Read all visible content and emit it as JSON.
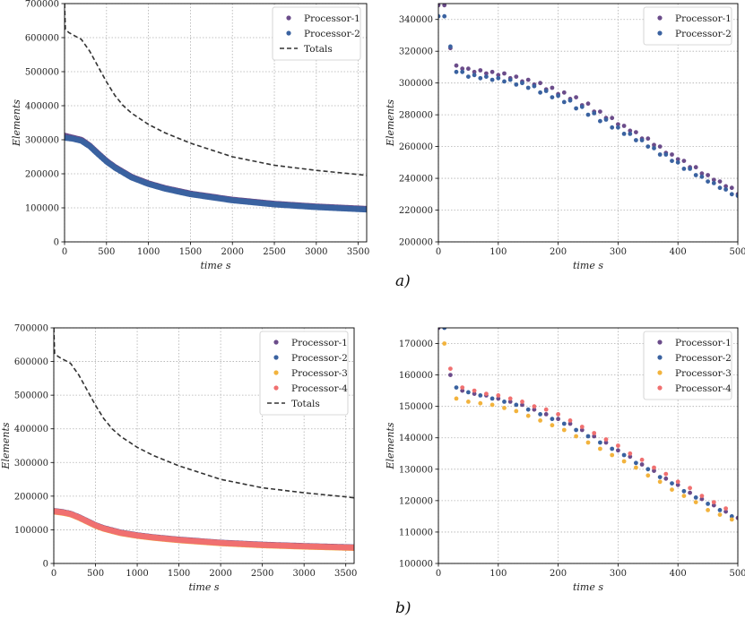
{
  "panel_labels": [
    "a)",
    "b)"
  ],
  "chart_data": [
    {
      "type": "scatter",
      "xlabel": "time s",
      "ylabel": "Elements",
      "xlim": [
        0,
        3600
      ],
      "ylim": [
        0,
        700000
      ],
      "xticks": [
        0,
        500,
        1000,
        1500,
        2000,
        2500,
        3000,
        3500
      ],
      "yticks": [
        0,
        100000,
        200000,
        300000,
        400000,
        500000,
        600000,
        700000
      ],
      "grid": true,
      "legend_position": "top-right",
      "series": [
        {
          "name": "Processor-1",
          "color": "#6b4c8a",
          "kind": "dense",
          "x": [
            0,
            100,
            200,
            300,
            400,
            500,
            600,
            800,
            1000,
            1200,
            1500,
            2000,
            2500,
            3000,
            3600
          ],
          "values": [
            312000,
            306000,
            300000,
            283000,
            260000,
            238000,
            220000,
            191000,
            172000,
            158000,
            142000,
            124000,
            112000,
            104000,
            97000
          ]
        },
        {
          "name": "Processor-2",
          "color": "#3a62a0",
          "kind": "dense",
          "x": [
            0,
            100,
            200,
            300,
            400,
            500,
            600,
            800,
            1000,
            1200,
            1500,
            2000,
            2500,
            3000,
            3600
          ],
          "values": [
            306000,
            303000,
            297000,
            281000,
            258000,
            236000,
            218000,
            189000,
            170000,
            156000,
            140000,
            122000,
            110000,
            102000,
            95000
          ]
        },
        {
          "name": "Totals",
          "color": "#333333",
          "kind": "dashed",
          "x": [
            0,
            10,
            50,
            100,
            200,
            300,
            400,
            500,
            600,
            700,
            800,
            1000,
            1200,
            1500,
            2000,
            2500,
            3000,
            3500,
            3600
          ],
          "values": [
            700000,
            625000,
            615000,
            608000,
            595000,
            560000,
            515000,
            470000,
            430000,
            400000,
            378000,
            345000,
            320000,
            290000,
            250000,
            225000,
            210000,
            198000,
            195000
          ]
        }
      ]
    },
    {
      "type": "scatter",
      "xlabel": "time s",
      "ylabel": "Elements",
      "xlim": [
        0,
        500
      ],
      "ylim": [
        200000,
        350000
      ],
      "xticks": [
        0,
        100,
        200,
        300,
        400,
        500
      ],
      "yticks": [
        200000,
        220000,
        240000,
        260000,
        280000,
        300000,
        320000,
        340000
      ],
      "grid": true,
      "legend_position": "top-right",
      "series": [
        {
          "name": "Processor-1",
          "color": "#6b4c8a",
          "kind": "points",
          "x": [
            0,
            10,
            20,
            30,
            40,
            50,
            60,
            70,
            80,
            90,
            100,
            110,
            120,
            130,
            140,
            150,
            160,
            170,
            180,
            190,
            200,
            210,
            220,
            230,
            240,
            250,
            260,
            270,
            280,
            290,
            300,
            310,
            320,
            330,
            340,
            350,
            360,
            370,
            380,
            390,
            400,
            410,
            420,
            430,
            440,
            450,
            460,
            470,
            480,
            490,
            500
          ],
          "values": [
            349000,
            349000,
            322000,
            311000,
            309000,
            309000,
            307000,
            308000,
            306000,
            307000,
            305000,
            306000,
            303000,
            304000,
            301000,
            302000,
            299000,
            300000,
            296000,
            297000,
            293000,
            294000,
            290000,
            291000,
            286000,
            287000,
            282000,
            282000,
            278000,
            278000,
            274000,
            273000,
            270000,
            269000,
            265000,
            265000,
            261000,
            260000,
            256000,
            255000,
            252000,
            251000,
            247000,
            247000,
            243000,
            242000,
            239000,
            238000,
            235000,
            234000,
            230000
          ]
        },
        {
          "name": "Processor-2",
          "color": "#3a62a0",
          "kind": "points",
          "x": [
            0,
            10,
            20,
            30,
            40,
            50,
            60,
            70,
            80,
            90,
            100,
            110,
            120,
            130,
            140,
            150,
            160,
            170,
            180,
            190,
            200,
            210,
            220,
            230,
            240,
            250,
            260,
            270,
            280,
            290,
            300,
            310,
            320,
            330,
            340,
            350,
            360,
            370,
            380,
            390,
            400,
            410,
            420,
            430,
            440,
            450,
            460,
            470,
            480,
            490,
            500
          ],
          "values": [
            342000,
            342000,
            323000,
            307000,
            307000,
            304000,
            305000,
            303000,
            304000,
            302000,
            303000,
            301000,
            302000,
            299000,
            300000,
            297000,
            298000,
            294000,
            295000,
            291000,
            292000,
            288000,
            289000,
            284000,
            285000,
            280000,
            281000,
            276000,
            277000,
            272000,
            272000,
            268000,
            268000,
            264000,
            264000,
            260000,
            259000,
            255000,
            255000,
            251000,
            250000,
            246000,
            246000,
            242000,
            241000,
            238000,
            237000,
            234000,
            233000,
            230000,
            229000
          ]
        }
      ]
    },
    {
      "type": "scatter",
      "xlabel": "time s",
      "ylabel": "Elements",
      "xlim": [
        0,
        3600
      ],
      "ylim": [
        0,
        700000
      ],
      "xticks": [
        0,
        500,
        1000,
        1500,
        2000,
        2500,
        3000,
        3500
      ],
      "yticks": [
        0,
        100000,
        200000,
        300000,
        400000,
        500000,
        600000,
        700000
      ],
      "grid": true,
      "legend_position": "top-right",
      "series": [
        {
          "name": "Processor-1",
          "color": "#6b4c8a",
          "kind": "dense",
          "x": [
            0,
            100,
            200,
            300,
            400,
            500,
            600,
            800,
            1000,
            1200,
            1500,
            2000,
            2500,
            3000,
            3600
          ],
          "values": [
            156000,
            153000,
            148000,
            138000,
            126000,
            114000,
            105000,
            92000,
            84000,
            78000,
            71000,
            62000,
            56000,
            52000,
            48000
          ]
        },
        {
          "name": "Processor-2",
          "color": "#3a62a0",
          "kind": "dense",
          "x": [
            0,
            100,
            200,
            300,
            400,
            500,
            600,
            800,
            1000,
            1200,
            1500,
            2000,
            2500,
            3000,
            3600
          ],
          "values": [
            155000,
            152000,
            147000,
            137000,
            125000,
            113000,
            104000,
            91000,
            83000,
            77000,
            70000,
            61000,
            55000,
            51000,
            47000
          ]
        },
        {
          "name": "Processor-3",
          "color": "#f2b33d",
          "kind": "dense",
          "x": [
            0,
            100,
            200,
            300,
            400,
            500,
            600,
            800,
            1000,
            1200,
            1500,
            2000,
            2500,
            3000,
            3600
          ],
          "values": [
            154000,
            151000,
            146000,
            136000,
            124000,
            112000,
            103000,
            90000,
            82000,
            76000,
            69000,
            60000,
            54000,
            50000,
            46000
          ]
        },
        {
          "name": "Processor-4",
          "color": "#f07070",
          "kind": "dense",
          "x": [
            0,
            100,
            200,
            300,
            400,
            500,
            600,
            800,
            1000,
            1200,
            1500,
            2000,
            2500,
            3000,
            3600
          ],
          "values": [
            155000,
            152000,
            147000,
            137000,
            125000,
            113000,
            104000,
            91000,
            83000,
            77000,
            70000,
            61000,
            55000,
            51000,
            47000
          ]
        },
        {
          "name": "Totals",
          "color": "#333333",
          "kind": "dashed",
          "x": [
            0,
            10,
            50,
            100,
            200,
            300,
            400,
            500,
            600,
            700,
            800,
            1000,
            1200,
            1500,
            2000,
            2500,
            3000,
            3500,
            3600
          ],
          "values": [
            700000,
            625000,
            615000,
            608000,
            595000,
            560000,
            515000,
            470000,
            430000,
            400000,
            378000,
            345000,
            320000,
            290000,
            250000,
            225000,
            210000,
            198000,
            195000
          ]
        }
      ]
    },
    {
      "type": "scatter",
      "xlabel": "time s",
      "ylabel": "Elements",
      "xlim": [
        0,
        500
      ],
      "ylim": [
        100000,
        175000
      ],
      "xticks": [
        0,
        100,
        200,
        300,
        400,
        500
      ],
      "yticks": [
        100000,
        110000,
        120000,
        130000,
        140000,
        150000,
        160000,
        170000
      ],
      "grid": true,
      "legend_position": "top-right",
      "series": [
        {
          "name": "Processor-1",
          "color": "#6b4c8a",
          "kind": "points",
          "x": [
            0,
            20,
            40,
            60,
            80,
            100,
            120,
            140,
            160,
            180,
            200,
            220,
            240,
            260,
            280,
            300,
            320,
            340,
            360,
            380,
            400,
            420,
            440,
            460,
            480,
            500
          ],
          "values": [
            175000,
            160000,
            155000,
            154000,
            153500,
            152500,
            151500,
            150500,
            149000,
            147500,
            146000,
            144500,
            142500,
            140500,
            138500,
            136000,
            134000,
            131500,
            129500,
            127000,
            125000,
            122500,
            120500,
            118500,
            116500,
            114500
          ]
        },
        {
          "name": "Processor-2",
          "color": "#3a62a0",
          "kind": "points",
          "x": [
            10,
            30,
            50,
            70,
            90,
            110,
            130,
            150,
            170,
            190,
            210,
            230,
            250,
            270,
            290,
            310,
            330,
            350,
            370,
            390,
            410,
            430,
            450,
            470,
            490
          ],
          "values": [
            175000,
            156000,
            154500,
            153500,
            152500,
            151500,
            150500,
            149000,
            147500,
            146000,
            144500,
            142500,
            140500,
            138500,
            136500,
            134500,
            132000,
            130000,
            127500,
            125500,
            123000,
            121000,
            119000,
            117000,
            115000
          ]
        },
        {
          "name": "Processor-3",
          "color": "#f2b33d",
          "kind": "points",
          "x": [
            10,
            30,
            50,
            70,
            90,
            110,
            130,
            150,
            170,
            190,
            210,
            230,
            250,
            270,
            290,
            310,
            330,
            350,
            370,
            390,
            410,
            430,
            450,
            470,
            490
          ],
          "values": [
            170000,
            152500,
            151500,
            151000,
            150500,
            149500,
            148500,
            147000,
            145500,
            144000,
            142500,
            140500,
            138500,
            136500,
            134500,
            132500,
            130500,
            128000,
            126000,
            123500,
            121500,
            119500,
            117000,
            115500,
            114000
          ]
        },
        {
          "name": "Processor-4",
          "color": "#f07070",
          "kind": "points",
          "x": [
            20,
            40,
            60,
            80,
            100,
            120,
            140,
            160,
            180,
            200,
            220,
            240,
            260,
            280,
            300,
            320,
            340,
            360,
            380,
            400,
            420,
            440,
            460,
            480
          ],
          "values": [
            162000,
            156000,
            155000,
            154000,
            153500,
            152500,
            151500,
            150000,
            149000,
            147500,
            145500,
            143500,
            141500,
            139500,
            137500,
            135000,
            133000,
            130500,
            128500,
            126000,
            124000,
            121500,
            119500,
            117500
          ]
        }
      ]
    }
  ]
}
